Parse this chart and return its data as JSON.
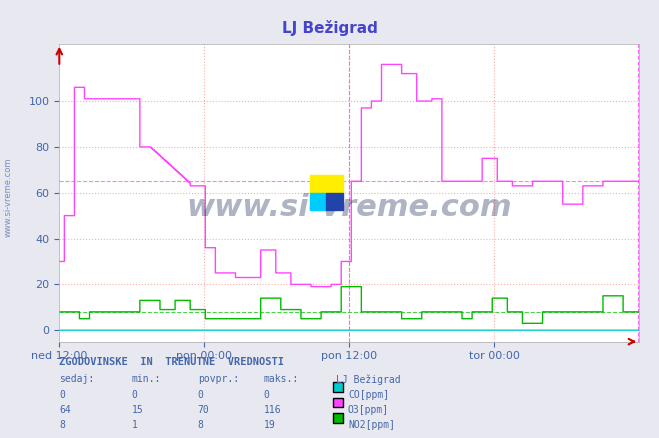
{
  "title": "LJ Bežigrad",
  "title_color": "#4444cc",
  "bg_color": "#e8e8f0",
  "plot_bg_color": "#ffffff",
  "grid_color": "#ffaaaa",
  "grid_dotted_color": "#ff9999",
  "xlabel_color": "#4466aa",
  "ylabel_color": "#4466aa",
  "tick_color": "#4466aa",
  "xlim": [
    0,
    576
  ],
  "ylim": [
    -5,
    125
  ],
  "yticks": [
    0,
    20,
    40,
    60,
    80,
    100
  ],
  "xtick_labels": [
    "ned 12:00",
    "pon 00:00",
    "pon 12:00",
    "tor 00:00"
  ],
  "xtick_positions": [
    0,
    144,
    288,
    432
  ],
  "hline_o3_value": 65,
  "hline_no2_value": 8,
  "vline_positions": [
    288,
    576
  ],
  "watermark": "www.si-vreme.com",
  "watermark_color": "#1a2a5a",
  "watermark_alpha": 0.35,
  "sidebar_text": "www.si-vreme.com",
  "sidebar_color": "#4466aa",
  "co_color": "#00cccc",
  "o3_color": "#ff44ff",
  "no2_color": "#00bb00",
  "table_header": "ZGODOVINSKE  IN  TRENUTNE  VREDNOSTI",
  "table_cols": [
    "sedaj:",
    "min.:",
    "povpr.:",
    "maks.:",
    "LJ Bežigrad"
  ],
  "table_rows": [
    [
      0,
      0,
      0,
      0,
      "CO[ppm]"
    ],
    [
      64,
      15,
      70,
      116,
      "O3[ppm]"
    ],
    [
      8,
      1,
      8,
      19,
      "NO2[ppm]"
    ]
  ],
  "table_colors": [
    "#00cccc",
    "#ff44ff",
    "#00bb00"
  ],
  "table_text_color": "#4466aa",
  "arrow_color": "#cc0000"
}
